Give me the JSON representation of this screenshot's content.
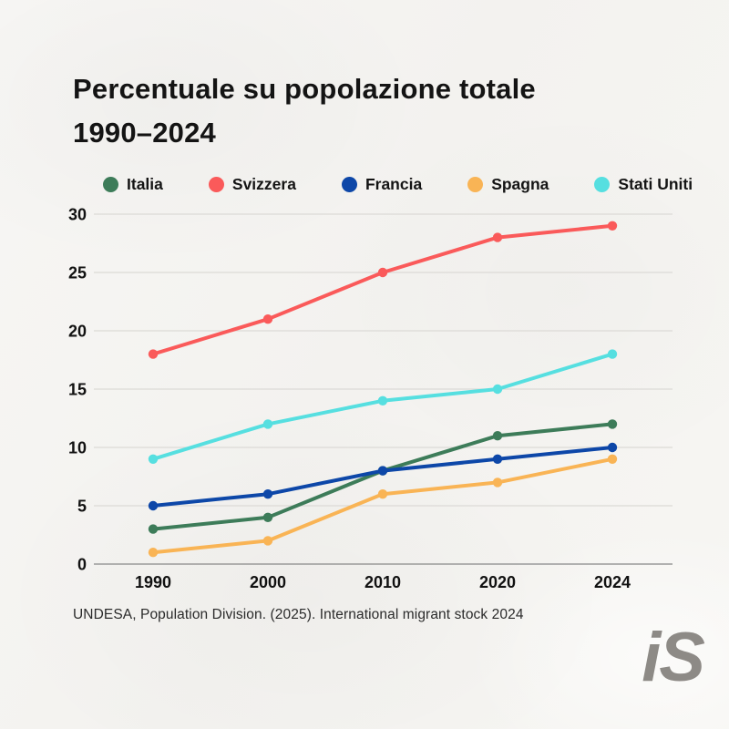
{
  "title": {
    "line1": "Percentuale su popolazione totale",
    "line2": "1990–2024"
  },
  "source": "UNDESA, Population Division. (2025). International migrant stock 2024",
  "logo_text": "iS",
  "colors": {
    "background": "#f6f5f2",
    "title_text": "#141414",
    "tick_text": "#111111",
    "grid": "#dcdad6",
    "zero_axis": "#9a9a9a"
  },
  "chart_data": {
    "type": "line",
    "title": "Percentuale su popolazione totale 1990–2024",
    "xlabel": "",
    "ylabel": "",
    "categories": [
      "1990",
      "2000",
      "2010",
      "2020",
      "2024"
    ],
    "series": [
      {
        "name": "Italia",
        "color": "#3d7c59",
        "values": [
          3,
          4,
          8,
          11,
          12
        ]
      },
      {
        "name": "Svizzera",
        "color": "#fa5a5a",
        "values": [
          18,
          21,
          25,
          28,
          29
        ]
      },
      {
        "name": "Francia",
        "color": "#0d47a8",
        "values": [
          5,
          6,
          8,
          9,
          10
        ]
      },
      {
        "name": "Spagna",
        "color": "#f9b455",
        "values": [
          1,
          2,
          6,
          7,
          9
        ]
      },
      {
        "name": "Stati Uniti",
        "color": "#56dfe0",
        "values": [
          9,
          12,
          14,
          15,
          18
        ]
      }
    ],
    "ylim": [
      0,
      30
    ],
    "yticks": [
      0,
      5,
      10,
      15,
      20,
      25,
      30
    ],
    "grid": true,
    "legend_position": "top"
  }
}
